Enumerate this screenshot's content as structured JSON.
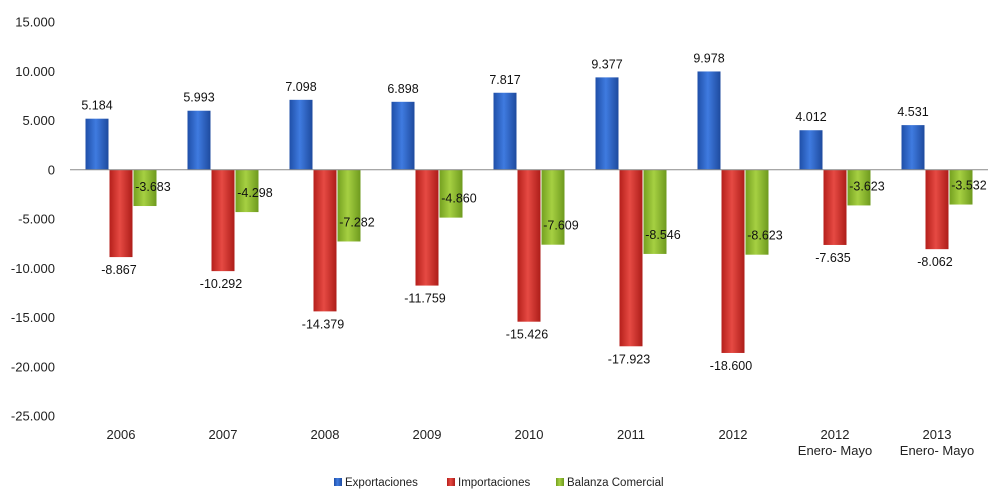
{
  "chart_data": {
    "type": "bar",
    "categories": [
      "2006",
      "2007",
      "2008",
      "2009",
      "2010",
      "2011",
      "2012",
      "2012",
      "2013"
    ],
    "category_sublabels": [
      "",
      "",
      "",
      "",
      "",
      "",
      "",
      "Enero- Mayo",
      "Enero- Mayo"
    ],
    "series": [
      {
        "name": "Exportaciones",
        "color": "#2E64C6",
        "values": [
          5184,
          5993,
          7098,
          6898,
          7817,
          9377,
          9978,
          4012,
          4531
        ],
        "labels": [
          "5.184",
          "5.993",
          "7.098",
          "6.898",
          "7.817",
          "9.377",
          "9.978",
          "4.012",
          "4.531"
        ]
      },
      {
        "name": "Importaciones",
        "color": "#D9302B",
        "values": [
          -8867,
          -10292,
          -14379,
          -11759,
          -15426,
          -17923,
          -18600,
          -7635,
          -8062
        ],
        "labels": [
          "-8.867",
          "-10.292",
          "-14.379",
          "-11.759",
          "-15.426",
          "-17.923",
          "-18.600",
          "-7.635",
          "-8.062"
        ]
      },
      {
        "name": "Balanza Comercial",
        "color": "#8DBA2E",
        "values": [
          -3683,
          -4298,
          -7282,
          -4860,
          -7609,
          -8546,
          -8623,
          -3623,
          -3532
        ],
        "labels": [
          "-3.683",
          "-4.298",
          "-7.282",
          "-4.860",
          "-7.609",
          "-8.546",
          "-8.623",
          "-3.623",
          "-3.532"
        ]
      }
    ],
    "ylim": [
      -25000,
      15000
    ],
    "yticks": [
      15000,
      10000,
      5000,
      0,
      -5000,
      -10000,
      -15000,
      -20000,
      -25000
    ],
    "ytick_labels": [
      "15.000",
      "10.000",
      "5.000",
      "0",
      "-5.000",
      "-10.000",
      "-15.000",
      "-20.000",
      "-25.000"
    ],
    "grid": false,
    "legend_position": "bottom-center",
    "title": "",
    "xlabel": "",
    "ylabel": ""
  }
}
